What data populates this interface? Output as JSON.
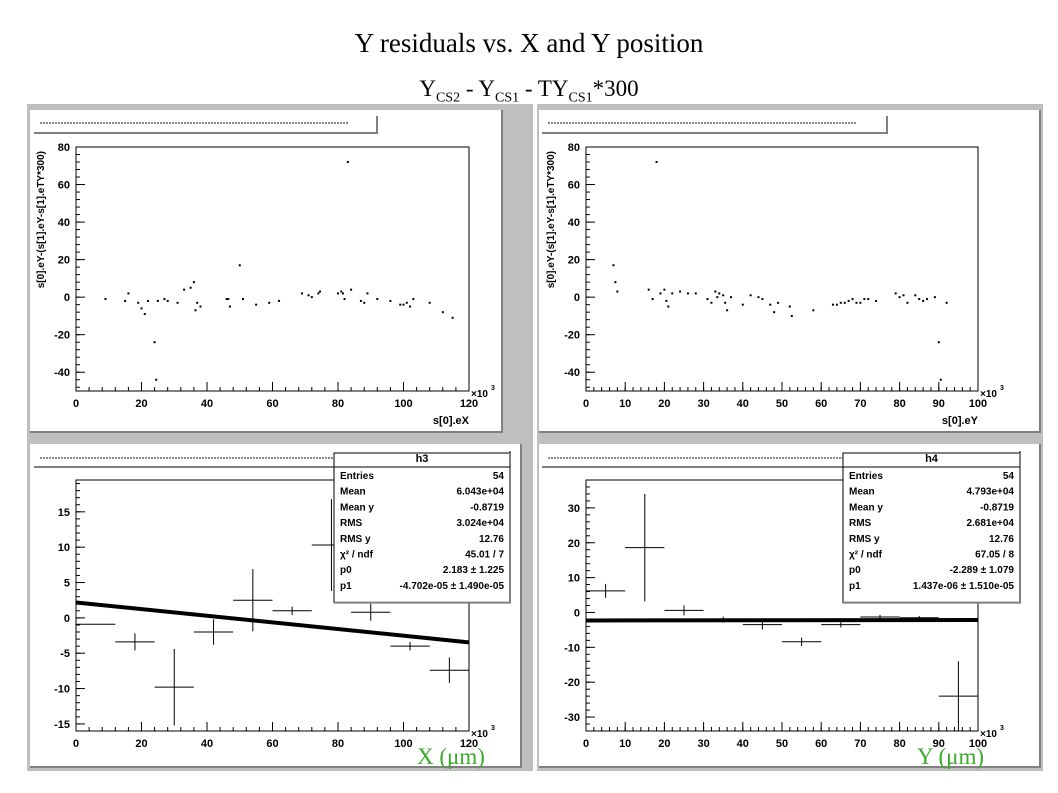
{
  "title": "Y residuals vs. X and Y position",
  "subtitle": {
    "p1": "Y",
    "s1": "CS2",
    "p2": " - Y",
    "s2": "CS1",
    "p3": " - TY",
    "s3": "CS1",
    "p4": "*300"
  },
  "x_unit_label": "X (μm)",
  "y_unit_label": "Y (μm)",
  "colors": {
    "canvas": "#bfbfbf",
    "frame": "#ffffff",
    "marker": "#000000",
    "unit_label": "#3aaa2a"
  },
  "chart_data": [
    {
      "id": "top-left",
      "type": "scatter",
      "ylabel": "s[0].eY-(s[1].eY-s[1].eTY*300)",
      "xlabel": "s[0].eX",
      "x_multiplier": "×10",
      "x_multiplier_exp": "3",
      "xlim": [
        0,
        120
      ],
      "ylim": [
        -50,
        80
      ],
      "xticks": [
        0,
        20,
        40,
        60,
        80,
        100,
        120
      ],
      "yticks": [
        -40,
        -20,
        0,
        20,
        40,
        60,
        80
      ],
      "grid": false,
      "points": [
        [
          9,
          -1
        ],
        [
          15,
          -2
        ],
        [
          16,
          2
        ],
        [
          19,
          -3
        ],
        [
          20,
          -6
        ],
        [
          21,
          -9
        ],
        [
          22,
          -2
        ],
        [
          24,
          -24
        ],
        [
          24.5,
          -44
        ],
        [
          25,
          -2
        ],
        [
          27,
          -1
        ],
        [
          28,
          -2
        ],
        [
          31,
          -3
        ],
        [
          33,
          4
        ],
        [
          35,
          5
        ],
        [
          36,
          8
        ],
        [
          36.5,
          -7
        ],
        [
          37,
          -3
        ],
        [
          38,
          -5
        ],
        [
          46,
          -1
        ],
        [
          46.5,
          -1
        ],
        [
          47,
          -5
        ],
        [
          50,
          17
        ],
        [
          51,
          -1
        ],
        [
          55,
          -4
        ],
        [
          59,
          -3
        ],
        [
          62,
          -2
        ],
        [
          69,
          2
        ],
        [
          71,
          1
        ],
        [
          72,
          0
        ],
        [
          74,
          2
        ],
        [
          74.5,
          3
        ],
        [
          80,
          2
        ],
        [
          81,
          3
        ],
        [
          81.5,
          2
        ],
        [
          82,
          -1
        ],
        [
          83,
          72
        ],
        [
          84,
          4
        ],
        [
          87,
          -2
        ],
        [
          88,
          -3
        ],
        [
          89,
          2
        ],
        [
          92,
          -1
        ],
        [
          96,
          -2
        ],
        [
          99,
          -4
        ],
        [
          100,
          -4
        ],
        [
          101,
          -3
        ],
        [
          102,
          -5
        ],
        [
          103,
          -1
        ],
        [
          108,
          -3
        ],
        [
          112,
          -8
        ],
        [
          115,
          -11
        ]
      ]
    },
    {
      "id": "top-right",
      "type": "scatter",
      "ylabel": "s[0].eY-(s[1].eY-s[1].eTY*300)",
      "xlabel": "s[0].eY",
      "x_multiplier": "×10",
      "x_multiplier_exp": "3",
      "xlim": [
        0,
        100
      ],
      "ylim": [
        -50,
        80
      ],
      "xticks": [
        0,
        10,
        20,
        30,
        40,
        50,
        60,
        70,
        80,
        90,
        100
      ],
      "yticks": [
        -40,
        -20,
        0,
        20,
        40,
        60,
        80
      ],
      "grid": false,
      "points": [
        [
          7,
          17
        ],
        [
          7.5,
          8
        ],
        [
          8,
          3
        ],
        [
          16,
          4
        ],
        [
          17,
          -1
        ],
        [
          18,
          72
        ],
        [
          19,
          2
        ],
        [
          20,
          4
        ],
        [
          20.5,
          -2
        ],
        [
          21,
          -5
        ],
        [
          22,
          2
        ],
        [
          24,
          3
        ],
        [
          26,
          2
        ],
        [
          28,
          2
        ],
        [
          31,
          -1
        ],
        [
          32,
          -3
        ],
        [
          33,
          3
        ],
        [
          33.5,
          0
        ],
        [
          34,
          2
        ],
        [
          35,
          1
        ],
        [
          35.5,
          -3
        ],
        [
          36,
          -7
        ],
        [
          37,
          0
        ],
        [
          40,
          -4
        ],
        [
          42,
          1
        ],
        [
          44,
          0
        ],
        [
          45,
          -1
        ],
        [
          47,
          -4
        ],
        [
          48,
          -8
        ],
        [
          49,
          -3
        ],
        [
          52,
          -5
        ],
        [
          52.5,
          -10
        ],
        [
          58,
          -7
        ],
        [
          63,
          -4
        ],
        [
          64,
          -4
        ],
        [
          65,
          -3
        ],
        [
          66,
          -3
        ],
        [
          67,
          -2
        ],
        [
          68,
          -1
        ],
        [
          69,
          -3
        ],
        [
          70,
          -3
        ],
        [
          71,
          -1
        ],
        [
          72,
          -1
        ],
        [
          74,
          -2
        ],
        [
          79,
          2
        ],
        [
          80,
          0
        ],
        [
          81,
          1
        ],
        [
          82,
          -3
        ],
        [
          84,
          1
        ],
        [
          85,
          -1
        ],
        [
          86,
          -2
        ],
        [
          87,
          -1
        ],
        [
          89,
          0
        ],
        [
          90,
          -24
        ],
        [
          90.5,
          -44
        ],
        [
          92,
          -3
        ]
      ]
    },
    {
      "id": "bottom-left",
      "type": "scatter",
      "histogram_name": "h3",
      "xlim": [
        0,
        120
      ],
      "ylim": [
        -16,
        19.5
      ],
      "xticks": [
        0,
        20,
        40,
        60,
        80,
        100,
        120
      ],
      "yticks": [
        -15,
        -10,
        -5,
        0,
        5,
        10,
        15
      ],
      "x_multiplier": "×10",
      "x_multiplier_exp": "3",
      "grid": false,
      "points_with_errors": [
        {
          "x": 6,
          "xerr": 6,
          "y": -0.9,
          "yerr": 0
        },
        {
          "x": 18,
          "xerr": 6,
          "y": -3.4,
          "yerr": 1.2
        },
        {
          "x": 30,
          "xerr": 6,
          "y": -9.8,
          "yerr": 5.4
        },
        {
          "x": 42,
          "xerr": 6,
          "y": -2.0,
          "yerr": 1.8
        },
        {
          "x": 54,
          "xerr": 6,
          "y": 2.5,
          "yerr": 4.4
        },
        {
          "x": 66,
          "xerr": 6,
          "y": 1.0,
          "yerr": 0.6
        },
        {
          "x": 78,
          "xerr": 6,
          "y": 10.3,
          "yerr": 6.5
        },
        {
          "x": 90,
          "xerr": 6,
          "y": 0.8,
          "yerr": 1.2
        },
        {
          "x": 102,
          "xerr": 6,
          "y": -4.0,
          "yerr": 0.6
        },
        {
          "x": 114,
          "xerr": 6,
          "y": -7.4,
          "yerr": 1.8
        }
      ],
      "fit_line": {
        "x": [
          0,
          120
        ],
        "y": [
          2.18,
          -3.46
        ]
      },
      "stats": [
        {
          "label": "Entries",
          "value": "54"
        },
        {
          "label": "Mean",
          "value": "6.043e+04"
        },
        {
          "label": "Mean y",
          "value": "-0.8719"
        },
        {
          "label": "RMS",
          "value": "3.024e+04"
        },
        {
          "label": "RMS y",
          "value": "12.76"
        },
        {
          "label": "χ² / ndf",
          "value": "45.01 / 7"
        },
        {
          "label": "p0",
          "value": "2.183 ± 1.225"
        },
        {
          "label": "p1",
          "value": "-4.702e-05 ± 1.490e-05"
        }
      ]
    },
    {
      "id": "bottom-right",
      "type": "scatter",
      "histogram_name": "h4",
      "xlim": [
        0,
        100
      ],
      "ylim": [
        -34,
        38
      ],
      "xticks": [
        0,
        10,
        20,
        30,
        40,
        50,
        60,
        70,
        80,
        90,
        100
      ],
      "yticks": [
        -30,
        -20,
        -10,
        0,
        10,
        20,
        30
      ],
      "x_multiplier": "×10",
      "x_multiplier_exp": "3",
      "grid": false,
      "points_with_errors": [
        {
          "x": 5,
          "xerr": 5,
          "y": 6.2,
          "yerr": 2.0
        },
        {
          "x": 15,
          "xerr": 5,
          "y": 18.6,
          "yerr": 15.4
        },
        {
          "x": 25,
          "xerr": 5,
          "y": 0.6,
          "yerr": 1.4
        },
        {
          "x": 35,
          "xerr": 5,
          "y": -2.0,
          "yerr": 0.8
        },
        {
          "x": 45,
          "xerr": 5,
          "y": -3.5,
          "yerr": 1.4
        },
        {
          "x": 55,
          "xerr": 5,
          "y": -8.4,
          "yerr": 1.2
        },
        {
          "x": 65,
          "xerr": 5,
          "y": -3.5,
          "yerr": 0.8
        },
        {
          "x": 75,
          "xerr": 5,
          "y": -1.3,
          "yerr": 0.6
        },
        {
          "x": 85,
          "xerr": 5,
          "y": -1.5,
          "yerr": 0.5
        },
        {
          "x": 95,
          "xerr": 5,
          "y": -24.0,
          "yerr": 10.0
        }
      ],
      "fit_line": {
        "x": [
          0,
          100
        ],
        "y": [
          -2.29,
          -2.15
        ]
      },
      "stats": [
        {
          "label": "Entries",
          "value": "54"
        },
        {
          "label": "Mean",
          "value": "4.793e+04"
        },
        {
          "label": "Mean y",
          "value": "-0.8719"
        },
        {
          "label": "RMS",
          "value": "2.681e+04"
        },
        {
          "label": "RMS y",
          "value": "12.76"
        },
        {
          "label": "χ² / ndf",
          "value": "67.05 / 8"
        },
        {
          "label": "p0",
          "value": "-2.289 ± 1.079"
        },
        {
          "label": "p1",
          "value": "1.437e-06 ± 1.510e-05"
        }
      ]
    }
  ]
}
